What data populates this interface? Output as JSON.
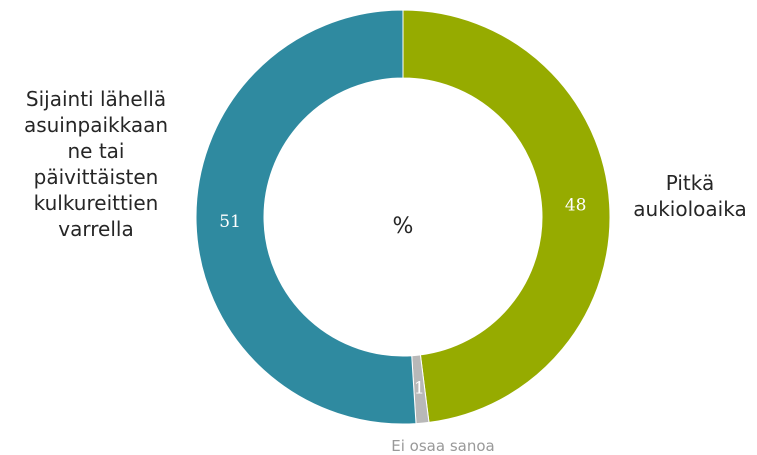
{
  "chart_data": {
    "type": "pie",
    "title": "",
    "center_label": "%",
    "slices": [
      {
        "label": "Pitkä aukioloaika",
        "value": 48,
        "color": "#96ab00"
      },
      {
        "label": "Ei osaa sanoa",
        "value": 1,
        "color": "#b8b8b8"
      },
      {
        "label": "Sijainti lähellä asuinpaikkaanne tai päivittäisten kulkureittien varrella",
        "value": 51,
        "color": "#2f8aa0"
      }
    ],
    "label_lines": {
      "Pitkä aukioloaika": [
        "Pitkä",
        "aukioloaika"
      ],
      "Ei osaa sanoa": [
        "Ei osaa sanoa"
      ],
      "Sijainti lähellä asuinpaikkaanne tai päivittäisten kulkureittien varrella": [
        "Sijainti lähellä",
        "asuinpaikkaan",
        "ne tai",
        "päivittäisten",
        "kulkureittien",
        "varrella"
      ]
    }
  }
}
